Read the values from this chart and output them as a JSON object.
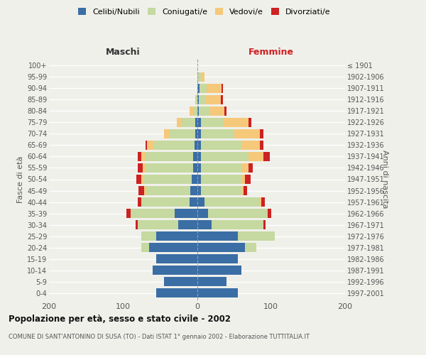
{
  "age_groups": [
    "0-4",
    "5-9",
    "10-14",
    "15-19",
    "20-24",
    "25-29",
    "30-34",
    "35-39",
    "40-44",
    "45-49",
    "50-54",
    "55-59",
    "60-64",
    "65-69",
    "70-74",
    "75-79",
    "80-84",
    "85-89",
    "90-94",
    "95-99",
    "100+"
  ],
  "birth_years": [
    "1997-2001",
    "1992-1996",
    "1987-1991",
    "1982-1986",
    "1977-1981",
    "1972-1976",
    "1967-1971",
    "1962-1966",
    "1957-1961",
    "1952-1956",
    "1947-1951",
    "1942-1946",
    "1937-1941",
    "1932-1936",
    "1927-1931",
    "1922-1926",
    "1917-1921",
    "1912-1916",
    "1907-1911",
    "1902-1906",
    "≤ 1901"
  ],
  "males": {
    "celibi": [
      55,
      45,
      60,
      55,
      65,
      55,
      25,
      30,
      10,
      9,
      7,
      5,
      5,
      3,
      2,
      2,
      0,
      0,
      0,
      0,
      0
    ],
    "coniugati": [
      0,
      0,
      0,
      0,
      10,
      20,
      55,
      60,
      65,
      60,
      65,
      65,
      65,
      55,
      35,
      20,
      5,
      2,
      0,
      0,
      0
    ],
    "vedovi": [
      0,
      0,
      0,
      0,
      0,
      0,
      0,
      0,
      0,
      2,
      3,
      3,
      5,
      10,
      8,
      5,
      5,
      0,
      0,
      0,
      0
    ],
    "divorziati": [
      0,
      0,
      0,
      0,
      0,
      0,
      3,
      5,
      5,
      8,
      7,
      7,
      5,
      2,
      0,
      0,
      0,
      0,
      0,
      0,
      0
    ]
  },
  "females": {
    "nubili": [
      55,
      40,
      60,
      55,
      65,
      55,
      20,
      15,
      10,
      5,
      5,
      5,
      5,
      5,
      5,
      5,
      2,
      2,
      3,
      0,
      0
    ],
    "coniugate": [
      0,
      0,
      0,
      0,
      15,
      50,
      70,
      80,
      75,
      55,
      55,
      55,
      65,
      55,
      45,
      30,
      15,
      10,
      10,
      5,
      0
    ],
    "vedove": [
      0,
      0,
      0,
      0,
      0,
      0,
      0,
      0,
      2,
      3,
      5,
      10,
      20,
      25,
      35,
      35,
      20,
      20,
      20,
      5,
      0
    ],
    "divorziate": [
      0,
      0,
      0,
      0,
      0,
      0,
      3,
      5,
      5,
      5,
      7,
      5,
      8,
      5,
      5,
      3,
      3,
      3,
      2,
      0,
      0
    ]
  },
  "colors": {
    "celibi": "#3a6ea5",
    "coniugati": "#c5d9a0",
    "vedovi": "#f5c87a",
    "divorziati": "#cc2222"
  },
  "legend_labels": [
    "Celibi/Nubili",
    "Coniugati/e",
    "Vedovi/e",
    "Divorziati/e"
  ],
  "title": "Popolazione per età, sesso e stato civile - 2002",
  "subtitle": "COMUNE DI SANT'ANTONINO DI SUSA (TO) - Dati ISTAT 1° gennaio 2002 - Elaborazione TUTTITALIA.IT",
  "xlabel_left": "Maschi",
  "xlabel_right": "Femmine",
  "ylabel_left": "Fasce di età",
  "ylabel_right": "Anni di nascita",
  "xlim": 200,
  "background_color": "#f0f0eb"
}
